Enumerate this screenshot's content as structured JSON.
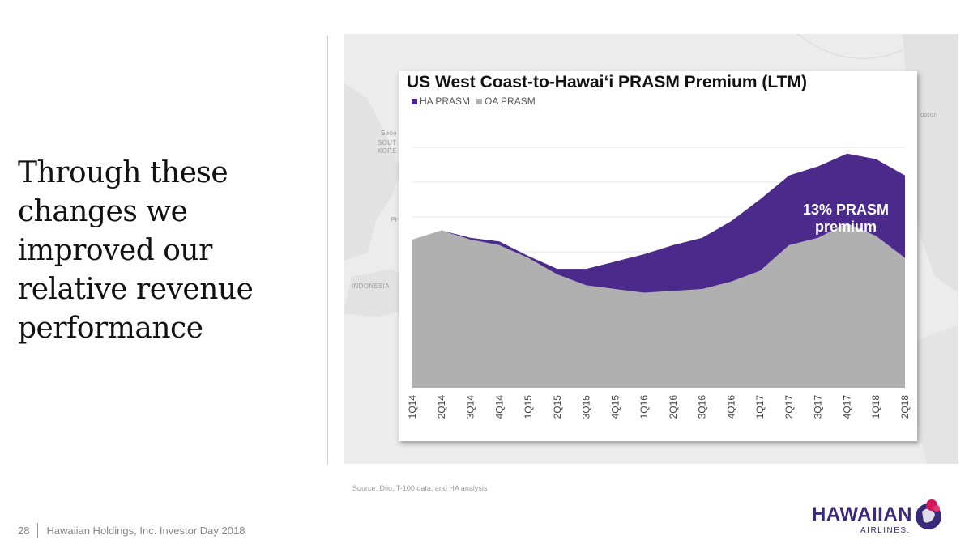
{
  "headline": {
    "lines": [
      "Through these",
      "changes we",
      "improved our",
      "relative revenue",
      "performance"
    ]
  },
  "map_labels": {
    "seoul": "Seou",
    "south_korea_1": "SOUT",
    "south_korea_2": "KORE",
    "philippines": "PH",
    "indonesia": "INDONESIA",
    "boston": "oston"
  },
  "colors": {
    "ha_prasm": "#4b2a8c",
    "oa_prasm": "#b0b0b0"
  },
  "chart_data": {
    "type": "area",
    "title": "US West Coast-to-Hawai‘i PRASM Premium (LTM)",
    "legend_placement": "top-left",
    "grid": true,
    "categories": [
      "1Q14",
      "2Q14",
      "3Q14",
      "4Q14",
      "1Q15",
      "2Q15",
      "3Q15",
      "4Q15",
      "1Q16",
      "2Q16",
      "3Q16",
      "4Q16",
      "1Q17",
      "2Q17",
      "3Q17",
      "4Q17",
      "1Q18",
      "2Q18"
    ],
    "series": [
      {
        "name": "HA PRASM",
        "values": [
          13.0,
          13.6,
          13.2,
          13.0,
          12.2,
          11.5,
          11.5,
          11.9,
          12.3,
          12.8,
          13.2,
          14.1,
          15.3,
          16.6,
          17.1,
          17.8,
          17.5,
          16.6
        ]
      },
      {
        "name": "OA PRASM",
        "values": [
          13.1,
          13.6,
          13.1,
          12.8,
          12.1,
          11.2,
          10.6,
          10.4,
          10.2,
          10.3,
          10.4,
          10.8,
          11.4,
          12.8,
          13.2,
          14.0,
          13.3,
          12.1
        ]
      }
    ],
    "ylim": [
      5,
      20
    ],
    "annotation": {
      "line1": "13% PRASM",
      "line2": "premium"
    }
  },
  "source": "Source: Diio, T-100 data, and HA analysis",
  "footer": {
    "page_number": "28",
    "text": "Hawaiian Holdings, Inc. Investor Day 2018"
  },
  "logo": {
    "word": "HAWAIIAN",
    "sub": "AIRLINES."
  }
}
